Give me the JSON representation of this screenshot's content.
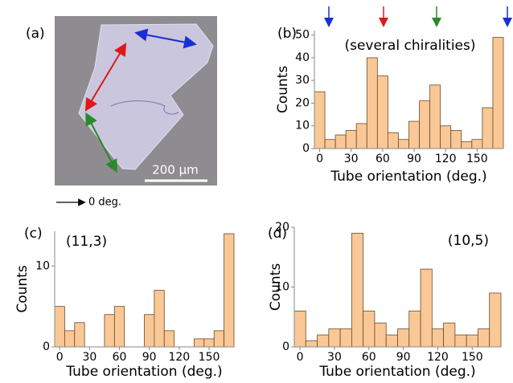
{
  "panel_a": {
    "label": "(a)",
    "scale_bar": "200 μm",
    "reference": "0 deg."
  },
  "chart_data": [
    {
      "type": "histogram",
      "panel_label": "(b)",
      "annotation": "(several chiralities)",
      "xlabel": "Tube orientation (deg.)",
      "ylabel": "Counts",
      "bins": [
        -5,
        5,
        15,
        25,
        35,
        45,
        55,
        65,
        75,
        85,
        95,
        105,
        115,
        125,
        135,
        145,
        155,
        165,
        175
      ],
      "values": [
        25,
        4,
        6,
        8,
        11,
        40,
        32,
        7,
        4,
        12,
        21,
        28,
        10,
        8,
        3,
        4,
        18,
        49
      ],
      "color": "#f9c896",
      "edgecolor": "#6b4a2a",
      "xlim": [
        -5,
        175
      ],
      "ylim": [
        0,
        52
      ],
      "xticks": [
        0,
        30,
        60,
        90,
        120,
        150
      ],
      "yticks": [
        0,
        10,
        20,
        30,
        40,
        50
      ]
    },
    {
      "type": "histogram",
      "panel_label": "(c)",
      "annotation": "(11,3)",
      "xlabel": "Tube orientation (deg.)",
      "ylabel": "Counts",
      "bins": [
        -5,
        5,
        15,
        25,
        35,
        45,
        55,
        65,
        75,
        85,
        95,
        105,
        115,
        125,
        135,
        145,
        155,
        165,
        175
      ],
      "values": [
        5,
        2,
        3,
        0,
        0,
        4,
        5,
        0,
        0,
        4,
        7,
        2,
        0,
        0,
        1,
        1,
        2,
        14
      ],
      "color": "#f9c896",
      "edgecolor": "#6b4a2a",
      "xlim": [
        -5,
        175
      ],
      "ylim": [
        0,
        14.3
      ],
      "xticks": [
        0,
        30,
        60,
        90,
        120,
        150
      ],
      "yticks": [
        0,
        10
      ]
    },
    {
      "type": "histogram",
      "panel_label": "(d)",
      "annotation": "(10,5)",
      "xlabel": "Tube orientation (deg.)",
      "ylabel": "Counts",
      "bins": [
        -5,
        5,
        15,
        25,
        35,
        45,
        55,
        65,
        75,
        85,
        95,
        105,
        115,
        125,
        135,
        145,
        155,
        165,
        175
      ],
      "values": [
        6,
        1,
        2,
        3,
        3,
        19,
        6,
        4,
        2,
        3,
        6,
        13,
        3,
        4,
        2,
        2,
        3,
        9
      ],
      "color": "#f9c896",
      "edgecolor": "#6b4a2a",
      "xlim": [
        -5,
        175
      ],
      "ylim": [
        0,
        20
      ],
      "xticks": [
        0,
        30,
        60,
        90,
        120,
        150
      ],
      "yticks": [
        0,
        10,
        20
      ]
    }
  ]
}
